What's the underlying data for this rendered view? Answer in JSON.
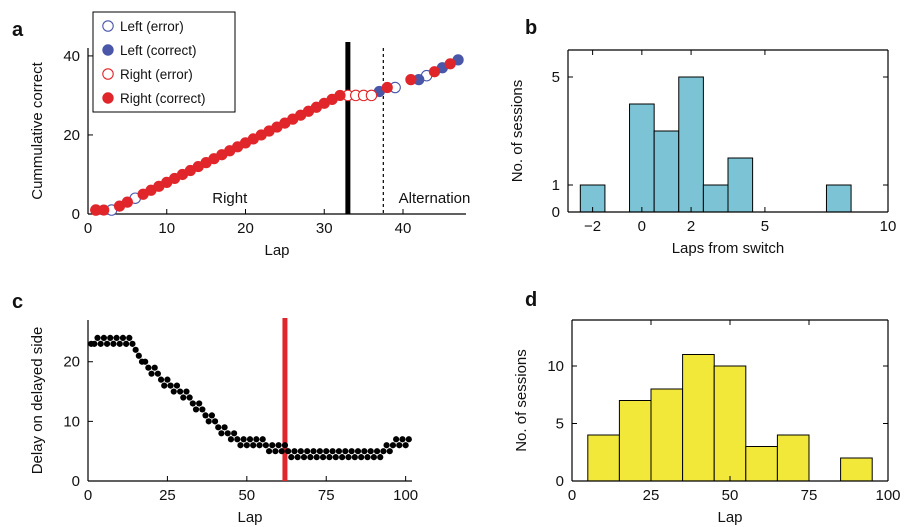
{
  "panels": {
    "a": "a",
    "b": "b",
    "c": "c",
    "d": "d"
  },
  "chart_data": [
    {
      "panel": "a",
      "type": "scatter",
      "xlabel": "Lap",
      "ylabel": "Cummulative correct",
      "xlim": [
        0,
        48
      ],
      "ylim": [
        0,
        42
      ],
      "xticks": [
        0,
        10,
        20,
        30,
        40
      ],
      "yticks": [
        0,
        20,
        40
      ],
      "legend": {
        "placement": "top-left",
        "entries": [
          {
            "label": "Left (error)",
            "marker": "open",
            "color": "#4a56a8"
          },
          {
            "label": "Left (correct)",
            "marker": "filled",
            "color": "#4a56a8"
          },
          {
            "label": "Right (error)",
            "marker": "open",
            "color": "#e0262b"
          },
          {
            "label": "Right (correct)",
            "marker": "filled",
            "color": "#e0262b"
          }
        ]
      },
      "annotations": [
        {
          "text": "Right",
          "x": 18,
          "y": 4
        },
        {
          "text": "Alternation",
          "x": 44,
          "y": 4
        }
      ],
      "switch_line": {
        "x": 33,
        "style": "solid",
        "color": "#000000"
      },
      "dotted_line": {
        "x": 37.5,
        "style": "dotted",
        "color": "#000000"
      },
      "series": [
        {
          "name": "Left (error)",
          "points": [
            [
              3,
              1
            ],
            [
              6,
              4
            ],
            [
              39,
              32
            ],
            [
              43,
              35
            ]
          ]
        },
        {
          "name": "Left (correct)",
          "points": [
            [
              37,
              31
            ],
            [
              42,
              34
            ],
            [
              45,
              37
            ],
            [
              47,
              39
            ]
          ]
        },
        {
          "name": "Right (error)",
          "points": [
            [
              1,
              1
            ],
            [
              33,
              30
            ],
            [
              34,
              30
            ],
            [
              35,
              30
            ],
            [
              36,
              30
            ]
          ]
        },
        {
          "name": "Right (correct)",
          "points": [
            [
              1,
              1
            ],
            [
              2,
              1
            ],
            [
              4,
              2
            ],
            [
              5,
              3
            ],
            [
              7,
              5
            ],
            [
              8,
              6
            ],
            [
              9,
              7
            ],
            [
              10,
              8
            ],
            [
              11,
              9
            ],
            [
              12,
              10
            ],
            [
              13,
              11
            ],
            [
              14,
              12
            ],
            [
              15,
              13
            ],
            [
              16,
              14
            ],
            [
              17,
              15
            ],
            [
              18,
              16
            ],
            [
              19,
              17
            ],
            [
              20,
              18
            ],
            [
              21,
              19
            ],
            [
              22,
              20
            ],
            [
              23,
              21
            ],
            [
              24,
              22
            ],
            [
              25,
              23
            ],
            [
              26,
              24
            ],
            [
              27,
              25
            ],
            [
              28,
              26
            ],
            [
              29,
              27
            ],
            [
              30,
              28
            ],
            [
              31,
              29
            ],
            [
              32,
              30
            ],
            [
              38,
              32
            ],
            [
              41,
              34
            ],
            [
              44,
              36
            ],
            [
              46,
              38
            ]
          ]
        }
      ]
    },
    {
      "panel": "b",
      "type": "bar",
      "histogram": true,
      "xlabel": "Laps from switch",
      "ylabel": "No. of sessions",
      "xlim": [
        -3,
        10
      ],
      "ylim": [
        0,
        6
      ],
      "xticks": [
        -2,
        0,
        2,
        5,
        10
      ],
      "xtick_labels": [
        "−2",
        "0",
        "2",
        "5",
        "10"
      ],
      "yticks": [
        0,
        1,
        5
      ],
      "bar_color": "#7cc4d5",
      "bins": [
        {
          "x0": -2.5,
          "x1": -1.5,
          "value": 1
        },
        {
          "x0": -0.5,
          "x1": 0.5,
          "value": 4
        },
        {
          "x0": 0.5,
          "x1": 1.5,
          "value": 3
        },
        {
          "x0": 1.5,
          "x1": 2.5,
          "value": 5
        },
        {
          "x0": 2.5,
          "x1": 3.5,
          "value": 1
        },
        {
          "x0": 3.5,
          "x1": 4.5,
          "value": 2
        },
        {
          "x0": 7.5,
          "x1": 8.5,
          "value": 1
        }
      ]
    },
    {
      "panel": "c",
      "type": "scatter",
      "xlabel": "Lap",
      "ylabel": "Delay on delayed side",
      "xlim": [
        0,
        102
      ],
      "ylim": [
        0,
        27
      ],
      "xticks": [
        0,
        25,
        50,
        75,
        100
      ],
      "yticks": [
        0,
        10,
        20
      ],
      "marker_color": "#000000",
      "switch_line": {
        "x": 62,
        "style": "solid",
        "color": "#e0262b"
      },
      "series": [
        {
          "name": "",
          "points": [
            [
              1,
              23
            ],
            [
              2,
              23
            ],
            [
              3,
              24
            ],
            [
              4,
              23
            ],
            [
              5,
              24
            ],
            [
              6,
              23
            ],
            [
              7,
              24
            ],
            [
              8,
              23
            ],
            [
              9,
              24
            ],
            [
              10,
              23
            ],
            [
              11,
              24
            ],
            [
              12,
              23
            ],
            [
              13,
              24
            ],
            [
              14,
              23
            ],
            [
              15,
              22
            ],
            [
              16,
              21
            ],
            [
              17,
              20
            ],
            [
              18,
              20
            ],
            [
              19,
              19
            ],
            [
              20,
              18
            ],
            [
              21,
              19
            ],
            [
              22,
              18
            ],
            [
              23,
              17
            ],
            [
              24,
              16
            ],
            [
              25,
              17
            ],
            [
              26,
              16
            ],
            [
              27,
              15
            ],
            [
              28,
              16
            ],
            [
              29,
              15
            ],
            [
              30,
              14
            ],
            [
              31,
              15
            ],
            [
              32,
              14
            ],
            [
              33,
              13
            ],
            [
              34,
              12
            ],
            [
              35,
              13
            ],
            [
              36,
              12
            ],
            [
              37,
              11
            ],
            [
              38,
              10
            ],
            [
              39,
              11
            ],
            [
              40,
              10
            ],
            [
              41,
              9
            ],
            [
              42,
              8
            ],
            [
              43,
              9
            ],
            [
              44,
              8
            ],
            [
              45,
              7
            ],
            [
              46,
              8
            ],
            [
              47,
              7
            ],
            [
              48,
              6
            ],
            [
              49,
              7
            ],
            [
              50,
              6
            ],
            [
              51,
              7
            ],
            [
              52,
              6
            ],
            [
              53,
              7
            ],
            [
              54,
              6
            ],
            [
              55,
              7
            ],
            [
              56,
              6
            ],
            [
              57,
              5
            ],
            [
              58,
              6
            ],
            [
              59,
              5
            ],
            [
              60,
              6
            ],
            [
              61,
              5
            ],
            [
              62,
              6
            ],
            [
              63,
              5
            ],
            [
              64,
              4
            ],
            [
              65,
              5
            ],
            [
              66,
              4
            ],
            [
              67,
              5
            ],
            [
              68,
              4
            ],
            [
              69,
              5
            ],
            [
              70,
              4
            ],
            [
              71,
              5
            ],
            [
              72,
              4
            ],
            [
              73,
              5
            ],
            [
              74,
              4
            ],
            [
              75,
              5
            ],
            [
              76,
              4
            ],
            [
              77,
              5
            ],
            [
              78,
              4
            ],
            [
              79,
              5
            ],
            [
              80,
              4
            ],
            [
              81,
              5
            ],
            [
              82,
              4
            ],
            [
              83,
              5
            ],
            [
              84,
              4
            ],
            [
              85,
              5
            ],
            [
              86,
              4
            ],
            [
              87,
              5
            ],
            [
              88,
              4
            ],
            [
              89,
              5
            ],
            [
              90,
              4
            ],
            [
              91,
              5
            ],
            [
              92,
              4
            ],
            [
              93,
              5
            ],
            [
              94,
              6
            ],
            [
              95,
              5
            ],
            [
              96,
              6
            ],
            [
              97,
              7
            ],
            [
              98,
              6
            ],
            [
              99,
              7
            ],
            [
              100,
              6
            ],
            [
              101,
              7
            ]
          ]
        }
      ]
    },
    {
      "panel": "d",
      "type": "bar",
      "histogram": true,
      "xlabel": "Lap",
      "ylabel": "No. of sessions",
      "xlim": [
        0,
        100
      ],
      "ylim": [
        0,
        14
      ],
      "xticks": [
        0,
        25,
        50,
        75,
        100
      ],
      "yticks": [
        0,
        5,
        10
      ],
      "bar_color": "#f2e83a",
      "bins": [
        {
          "x0": 5,
          "x1": 15,
          "value": 4
        },
        {
          "x0": 15,
          "x1": 25,
          "value": 7
        },
        {
          "x0": 25,
          "x1": 35,
          "value": 8
        },
        {
          "x0": 35,
          "x1": 45,
          "value": 11
        },
        {
          "x0": 45,
          "x1": 55,
          "value": 10
        },
        {
          "x0": 55,
          "x1": 65,
          "value": 3
        },
        {
          "x0": 65,
          "x1": 75,
          "value": 4
        },
        {
          "x0": 85,
          "x1": 95,
          "value": 2
        }
      ]
    }
  ]
}
